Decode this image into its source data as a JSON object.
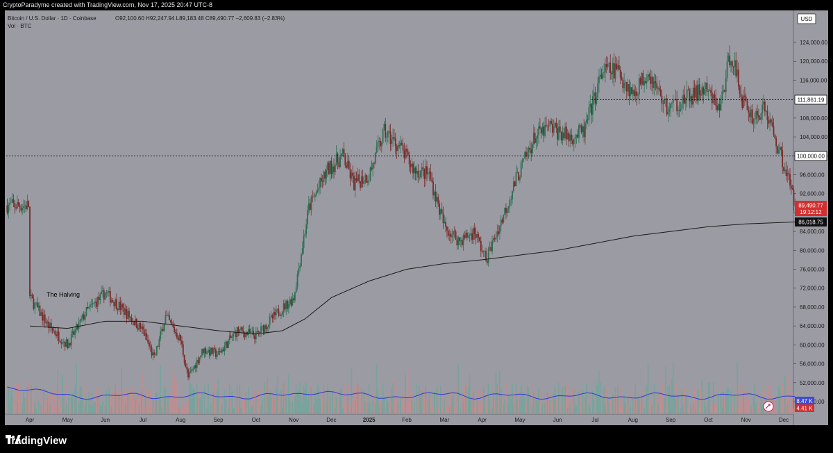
{
  "header": {
    "created_by": "CryptoParadyme created with TradingView.com, Nov 17, 2025 20:47 UTC-8"
  },
  "legend": {
    "symbol": "Bitcoin / U.S. Dollar · 1D · Coinbase",
    "ohlc": "O92,100.60 H92,247.94 L89,183.48 C89,490.77 −2,609.83 (−2.83%)",
    "volume": "Vol · BTC"
  },
  "currency_label": "USD",
  "annotation": "The Halving",
  "footer": {
    "brand": "TradingView"
  },
  "price_badges": {
    "resistance": "111,861.19",
    "support_round": "100,000.00",
    "last_price": "89,490.77",
    "countdown": "19:12:12",
    "moving_average": "86,018.75",
    "volume_ma": "8.47 K",
    "volume_last": "4.41 K"
  },
  "colors": {
    "background": "#9b9ba3",
    "up": "#2e6f53",
    "down": "#7a2a2a",
    "ma": "#1a1a1a",
    "volume_ma": "#2b3bd6",
    "last_price_badge": "#d32f2f",
    "volume_badge": "#3d4bd8"
  },
  "chart_data": {
    "type": "candlestick",
    "y_axis": {
      "min": 44000,
      "max": 128000,
      "ticks": [
        "124,000.00",
        "120,000.00",
        "116,000.00",
        "112,000.00",
        "108,000.00",
        "104,000.00",
        "100,000.00",
        "96,000.00",
        "92,000.00",
        "88,000.00",
        "84,000.00",
        "80,000.00",
        "76,000.00",
        "72,000.00",
        "68,000.00",
        "64,000.00",
        "60,000.00",
        "56,000.00",
        "52,000.00",
        "48,000.00"
      ]
    },
    "x_axis": {
      "labels": [
        "Apr",
        "May",
        "Jun",
        "Jul",
        "Aug",
        "Sep",
        "Oct",
        "Nov",
        "Dec",
        "2025",
        "Feb",
        "Mar",
        "Apr",
        "May",
        "Jun",
        "Jul",
        "Aug",
        "Sep",
        "Oct",
        "Nov",
        "Dec"
      ]
    },
    "price_path": [
      {
        "m": 0,
        "p": 70000
      },
      {
        "m": 0.5,
        "p": 64000
      },
      {
        "m": 1,
        "p": 60000
      },
      {
        "m": 1.5,
        "p": 67000
      },
      {
        "m": 2,
        "p": 71000
      },
      {
        "m": 2.4,
        "p": 68000
      },
      {
        "m": 3,
        "p": 63000
      },
      {
        "m": 3.3,
        "p": 57000
      },
      {
        "m": 3.6,
        "p": 66000
      },
      {
        "m": 4,
        "p": 61000
      },
      {
        "m": 4.2,
        "p": 53000
      },
      {
        "m": 4.6,
        "p": 59000
      },
      {
        "m": 5,
        "p": 58000
      },
      {
        "m": 5.5,
        "p": 63000
      },
      {
        "m": 6,
        "p": 62000
      },
      {
        "m": 6.6,
        "p": 67000
      },
      {
        "m": 7,
        "p": 70000
      },
      {
        "m": 7.4,
        "p": 89000
      },
      {
        "m": 7.9,
        "p": 97000
      },
      {
        "m": 8.3,
        "p": 100000
      },
      {
        "m": 8.6,
        "p": 94000
      },
      {
        "m": 9,
        "p": 96000
      },
      {
        "m": 9.4,
        "p": 105000
      },
      {
        "m": 9.8,
        "p": 102000
      },
      {
        "m": 10.2,
        "p": 97000
      },
      {
        "m": 10.6,
        "p": 96000
      },
      {
        "m": 11,
        "p": 85000
      },
      {
        "m": 11.4,
        "p": 82000
      },
      {
        "m": 11.8,
        "p": 84000
      },
      {
        "m": 12.1,
        "p": 78000
      },
      {
        "m": 12.5,
        "p": 86000
      },
      {
        "m": 12.9,
        "p": 95000
      },
      {
        "m": 13.4,
        "p": 104000
      },
      {
        "m": 13.8,
        "p": 106000
      },
      {
        "m": 14.3,
        "p": 104000
      },
      {
        "m": 14.7,
        "p": 105000
      },
      {
        "m": 15.2,
        "p": 118000
      },
      {
        "m": 15.6,
        "p": 118000
      },
      {
        "m": 16,
        "p": 113000
      },
      {
        "m": 16.4,
        "p": 118000
      },
      {
        "m": 16.9,
        "p": 110000
      },
      {
        "m": 17.4,
        "p": 112000
      },
      {
        "m": 17.9,
        "p": 114000
      },
      {
        "m": 18.3,
        "p": 110000
      },
      {
        "m": 18.6,
        "p": 122000
      },
      {
        "m": 18.9,
        "p": 112000
      },
      {
        "m": 19.2,
        "p": 108000
      },
      {
        "m": 19.5,
        "p": 110000
      },
      {
        "m": 19.8,
        "p": 103000
      },
      {
        "m": 20.1,
        "p": 96000
      },
      {
        "m": 20.3,
        "p": 89490
      }
    ],
    "moving_average": [
      {
        "m": 0,
        "p": 64000
      },
      {
        "m": 1,
        "p": 63500
      },
      {
        "m": 2,
        "p": 65000
      },
      {
        "m": 3,
        "p": 65000
      },
      {
        "m": 4,
        "p": 64000
      },
      {
        "m": 5,
        "p": 63000
      },
      {
        "m": 6,
        "p": 62300
      },
      {
        "m": 6.7,
        "p": 63000
      },
      {
        "m": 7.3,
        "p": 65500
      },
      {
        "m": 8,
        "p": 70000
      },
      {
        "m": 9,
        "p": 73500
      },
      {
        "m": 10,
        "p": 76000
      },
      {
        "m": 11,
        "p": 77200
      },
      {
        "m": 12,
        "p": 78000
      },
      {
        "m": 13,
        "p": 79000
      },
      {
        "m": 14,
        "p": 80000
      },
      {
        "m": 15,
        "p": 81500
      },
      {
        "m": 16,
        "p": 83000
      },
      {
        "m": 17,
        "p": 84000
      },
      {
        "m": 18,
        "p": 85000
      },
      {
        "m": 19,
        "p": 85600
      },
      {
        "m": 20.3,
        "p": 86018
      }
    ],
    "levels": {
      "resistance": 111861.19,
      "support": 100000,
      "moving_average": 86018.75,
      "last_price": 89490.77
    }
  }
}
